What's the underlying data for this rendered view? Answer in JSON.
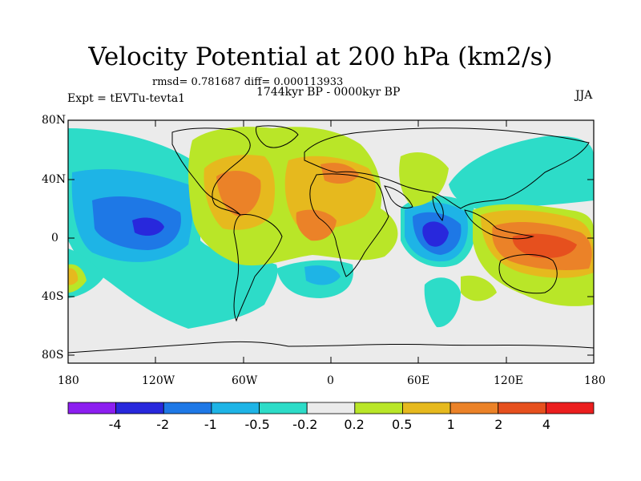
{
  "title": "Velocity Potential at 200 hPa (km2/s)",
  "stats": "rmsd= 0.781687 diff= 0.000113933",
  "period": "1744kyr BP - 0000kyr BP",
  "experiment": "Expt = tEVTu-tevta1",
  "season": "JJA",
  "map": {
    "projection": "cylindrical equidistant",
    "lon_range": [
      -180,
      180
    ],
    "lat_range": [
      -90,
      90
    ],
    "lat_labels": [
      "80N",
      "40N",
      "0",
      "40S",
      "80S"
    ],
    "lon_labels": [
      "180",
      "120W",
      "60W",
      "0",
      "60E",
      "120E",
      "180"
    ]
  },
  "colorbar": {
    "levels": [
      "-4",
      "-2",
      "-1",
      "-0.5",
      "-0.2",
      "0.2",
      "0.5",
      "1",
      "2",
      "4"
    ],
    "colors": [
      "#8c1ef0",
      "#2828dc",
      "#1e78e6",
      "#1eb4e6",
      "#2ddcc8",
      "#ebebeb",
      "#b9e628",
      "#e6b91e",
      "#eb8228",
      "#e6501e",
      "#eb1e1e"
    ]
  }
}
